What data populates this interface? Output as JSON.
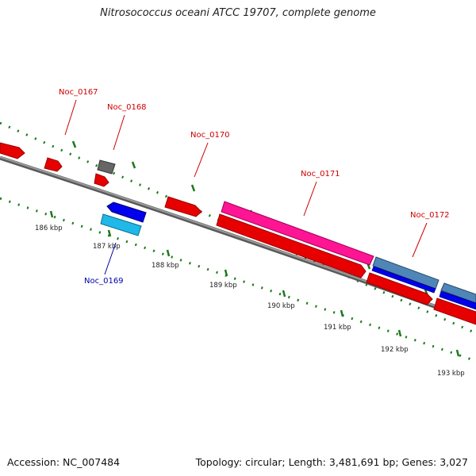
{
  "title": "Nitrosococcus oceani ATCC 19707, complete genome",
  "accession": "Accession: NC_007484",
  "summary": "Topology: circular; Length: 3,481,691 bp; Genes: 3,027",
  "colors": {
    "forward_gene": "#ff0000",
    "reverse_gene": "#0000ee",
    "pseudogene_gray": "#666666",
    "rna_cyan": "#1fb8e8",
    "magenta_feature": "#ff1493",
    "steel_feature": "#4f86b8",
    "backbone": "#808080",
    "tick": "#1a7a1a",
    "label_forward": "#cc0000",
    "label_reverse": "#0000aa"
  },
  "ticks": [
    {
      "label": "186 kbp"
    },
    {
      "label": "187 kbp"
    },
    {
      "label": "188 kbp"
    },
    {
      "label": "189 kbp"
    },
    {
      "label": "190 kbp"
    },
    {
      "label": "191 kbp"
    },
    {
      "label": "192 kbp"
    },
    {
      "label": "193 kbp"
    }
  ],
  "gene_labels": [
    {
      "name": "Noc_0167",
      "strand": "forward"
    },
    {
      "name": "Noc_0168",
      "strand": "forward"
    },
    {
      "name": "Noc_0169",
      "strand": "reverse"
    },
    {
      "name": "Noc_0170",
      "strand": "forward"
    },
    {
      "name": "Noc_0171",
      "strand": "forward"
    },
    {
      "name": "Noc_0172",
      "strand": "forward"
    }
  ]
}
